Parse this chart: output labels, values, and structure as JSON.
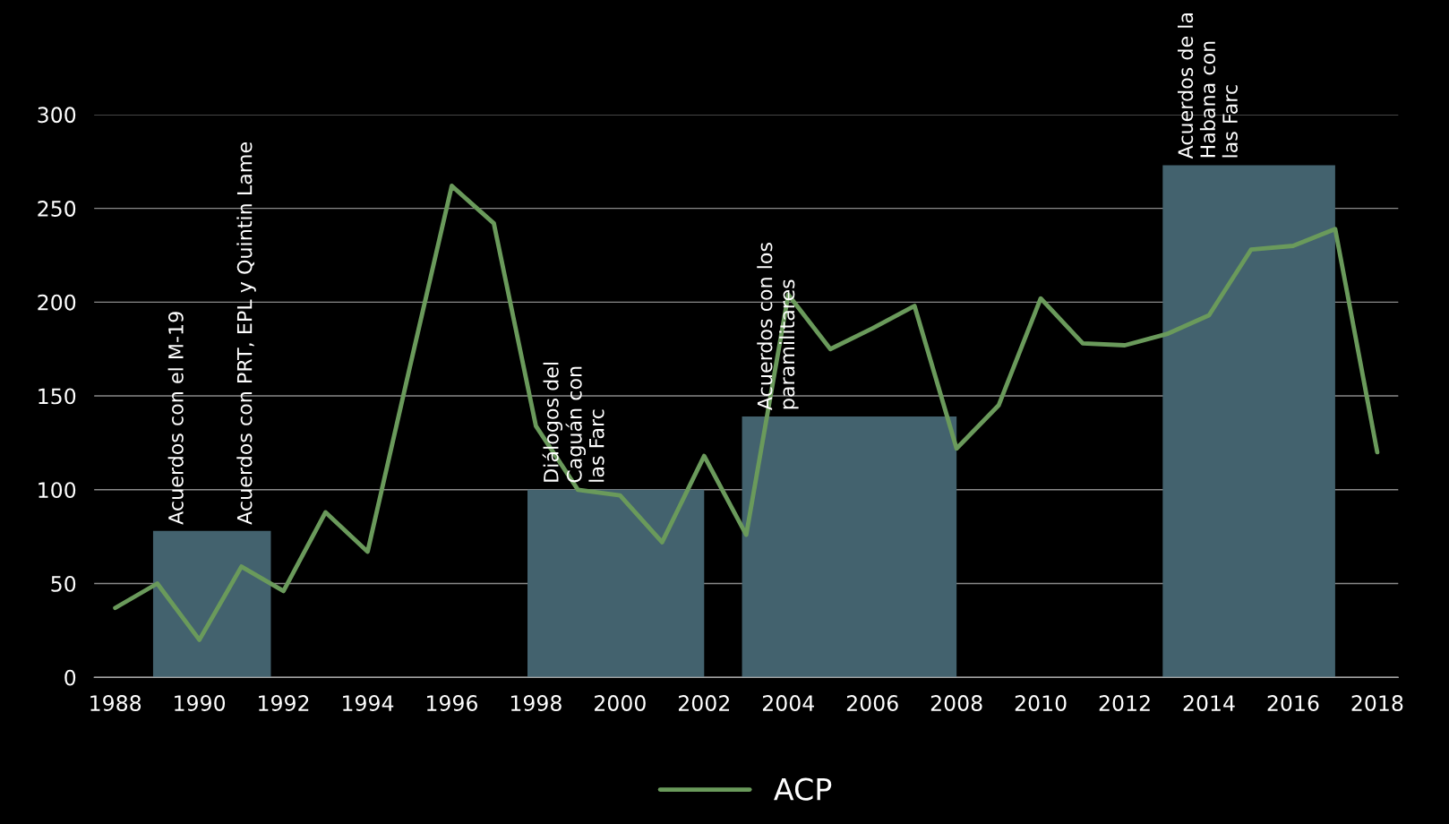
{
  "chart_data": {
    "type": "line",
    "x": [
      1988,
      1989,
      1990,
      1991,
      1992,
      1993,
      1994,
      1995,
      1996,
      1997,
      1998,
      1999,
      2000,
      2001,
      2002,
      2003,
      2004,
      2005,
      2006,
      2007,
      2008,
      2009,
      2010,
      2011,
      2012,
      2013,
      2014,
      2015,
      2016,
      2017,
      2018
    ],
    "series": [
      {
        "name": "ACP",
        "color": "#6a9a5b",
        "values": [
          37,
          50,
          20,
          59,
          46,
          88,
          67,
          165,
          262,
          242,
          134,
          100,
          97,
          72,
          118,
          76,
          204,
          175,
          186,
          198,
          122,
          145,
          202,
          178,
          177,
          183,
          193,
          228,
          230,
          239,
          120
        ]
      },
      {
        "type": "area",
        "color": "#43626e",
        "x": [
          1988.9,
          1991.7
        ],
        "values": [
          78,
          78
        ]
      },
      {
        "type": "area",
        "color": "#43626e",
        "x": [
          1997.8,
          2002
        ],
        "values": [
          100,
          100
        ]
      },
      {
        "type": "area",
        "color": "#43626e",
        "x": [
          2002.9,
          2008
        ],
        "values": [
          139,
          139
        ]
      },
      {
        "type": "area",
        "color": "#43626e",
        "x": [
          2012.9,
          2017
        ],
        "values": [
          273,
          273
        ]
      }
    ],
    "annotations": [
      {
        "text": "Acuerdos con el M-19",
        "x": 1988.9,
        "y": 78
      },
      {
        "text": "Acuerdos con PRT, EPL y Quintin Lame",
        "x": 1991.7,
        "y": 78
      },
      {
        "text": "Diálogos del\nCaguán con\nlas Farc",
        "x": 1997.8,
        "y": 100
      },
      {
        "text": "Acuerdos con los\nparamilitares",
        "x": 2002.9,
        "y": 139
      },
      {
        "text": "Acuerdos de la\nHabana con\nlas Farc",
        "x": 2012.9,
        "y": 273
      }
    ],
    "xlim": [
      1987.5,
      2018.5
    ],
    "xticks": [
      1988,
      1990,
      1992,
      1994,
      1996,
      1998,
      2000,
      2002,
      2004,
      2006,
      2008,
      2010,
      2012,
      2014,
      2016,
      2018
    ],
    "ylim": [
      0,
      300
    ],
    "yticks": [
      0,
      50,
      100,
      150,
      200,
      250,
      300
    ],
    "grid": "y",
    "legend": "bottom",
    "line_style": "solid",
    "marker": "none"
  }
}
